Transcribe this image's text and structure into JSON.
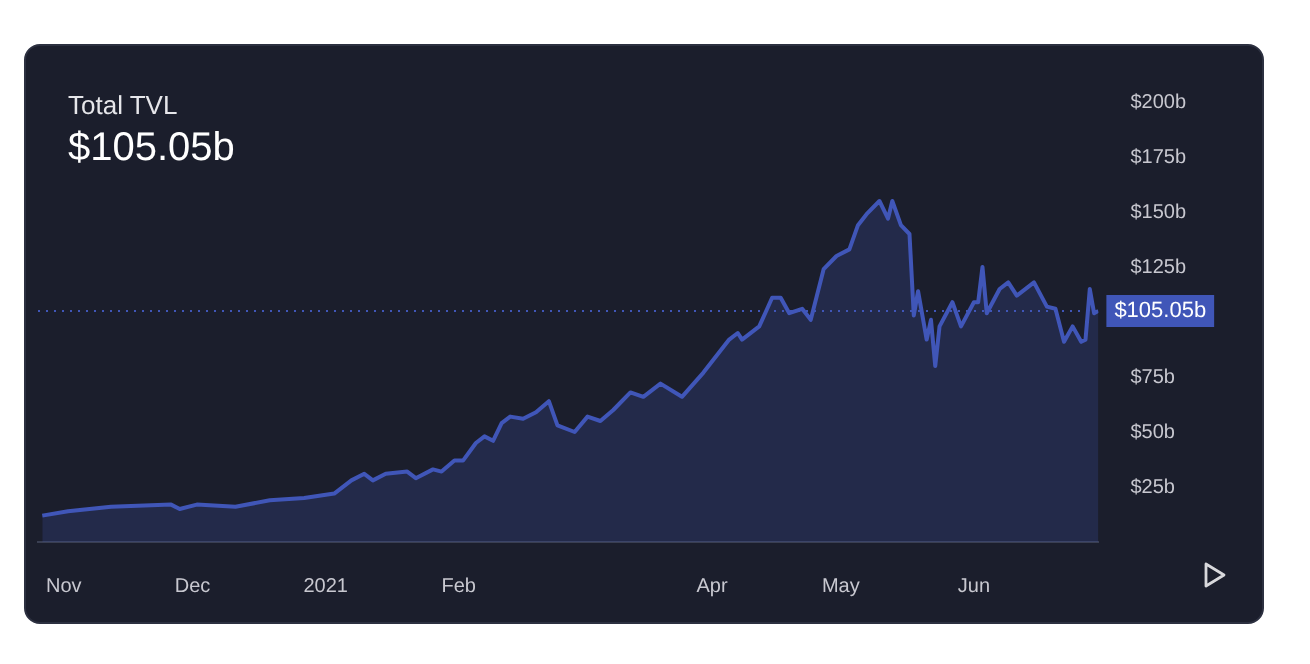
{
  "chart_data": {
    "type": "area",
    "title": "Total TVL",
    "subtitle": "$105.05b",
    "x": [
      "2020-10-27",
      "2020-11-02",
      "2020-11-12",
      "2020-11-26",
      "2020-11-28",
      "2020-12-02",
      "2020-12-11",
      "2020-12-19",
      "2020-12-27",
      "2021-01-03",
      "2021-01-07",
      "2021-01-10",
      "2021-01-12",
      "2021-01-15",
      "2021-01-20",
      "2021-01-22",
      "2021-01-26",
      "2021-01-28",
      "2021-01-31",
      "2021-02-02",
      "2021-02-05",
      "2021-02-07",
      "2021-02-09",
      "2021-02-11",
      "2021-02-13",
      "2021-02-16",
      "2021-02-19",
      "2021-02-22",
      "2021-02-24",
      "2021-02-28",
      "2021-03-03",
      "2021-03-06",
      "2021-03-09",
      "2021-03-13",
      "2021-03-16",
      "2021-03-20",
      "2021-03-25",
      "2021-03-30",
      "2021-04-05",
      "2021-04-07",
      "2021-04-08",
      "2021-04-12",
      "2021-04-15",
      "2021-04-17",
      "2021-04-19",
      "2021-04-22",
      "2021-04-24",
      "2021-04-27",
      "2021-04-30",
      "2021-05-03",
      "2021-05-05",
      "2021-05-07",
      "2021-05-10",
      "2021-05-12",
      "2021-05-13",
      "2021-05-15",
      "2021-05-17",
      "2021-05-18",
      "2021-05-19",
      "2021-05-21",
      "2021-05-22",
      "2021-05-23",
      "2021-05-24",
      "2021-05-27",
      "2021-05-29",
      "2021-06-01",
      "2021-06-02",
      "2021-06-03",
      "2021-06-04",
      "2021-06-07",
      "2021-06-09",
      "2021-06-11",
      "2021-06-15",
      "2021-06-18",
      "2021-06-20",
      "2021-06-22",
      "2021-06-24",
      "2021-06-26",
      "2021-06-27",
      "2021-06-28",
      "2021-06-29",
      "2021-06-30"
    ],
    "series": [
      {
        "color": "#4056b8",
        "values": [
          12,
          14,
          16,
          17,
          15,
          17,
          16,
          19,
          20,
          22,
          28,
          31,
          28,
          31,
          32,
          29,
          33,
          32,
          37,
          37,
          45,
          48,
          46,
          54,
          57,
          56,
          59,
          64,
          53,
          50,
          57,
          55,
          60,
          68,
          66,
          72,
          66,
          77,
          92,
          95,
          92,
          98,
          111,
          111,
          104,
          106,
          101,
          124,
          130,
          133,
          144,
          149,
          155,
          147,
          155,
          144,
          140,
          103,
          114,
          92,
          101,
          80,
          98,
          109,
          98,
          109,
          109,
          125,
          104,
          115,
          118,
          112,
          118,
          107,
          106,
          91,
          98,
          91,
          92,
          115,
          104,
          105.05
        ]
      }
    ],
    "xlim": [
      "2020-10-26",
      "2021-06-30"
    ],
    "xticks": [
      {
        "value": "2020-11-01",
        "label": "Nov"
      },
      {
        "value": "2020-12-01",
        "label": "Dec"
      },
      {
        "value": "2021-01-01",
        "label": "2021"
      },
      {
        "value": "2021-02-01",
        "label": "Feb"
      },
      {
        "value": "2021-04-01",
        "label": "Apr"
      },
      {
        "value": "2021-05-01",
        "label": "May"
      },
      {
        "value": "2021-06-01",
        "label": "Jun"
      }
    ],
    "ylim": [
      0,
      200
    ],
    "yticks": [
      {
        "value": 25,
        "label": "$25b"
      },
      {
        "value": 50,
        "label": "$50b"
      },
      {
        "value": 75,
        "label": "$75b"
      },
      {
        "value": 125,
        "label": "$125b"
      },
      {
        "value": 150,
        "label": "$150b"
      },
      {
        "value": 175,
        "label": "$175b"
      },
      {
        "value": 200,
        "label": "$200b"
      }
    ],
    "ref_lines": [
      {
        "axis": "y",
        "value": 105.05,
        "label": "$105.05b",
        "color": "#4056b8",
        "line_style": "dotted"
      }
    ],
    "grid": false,
    "legend": false,
    "marker": "none"
  }
}
